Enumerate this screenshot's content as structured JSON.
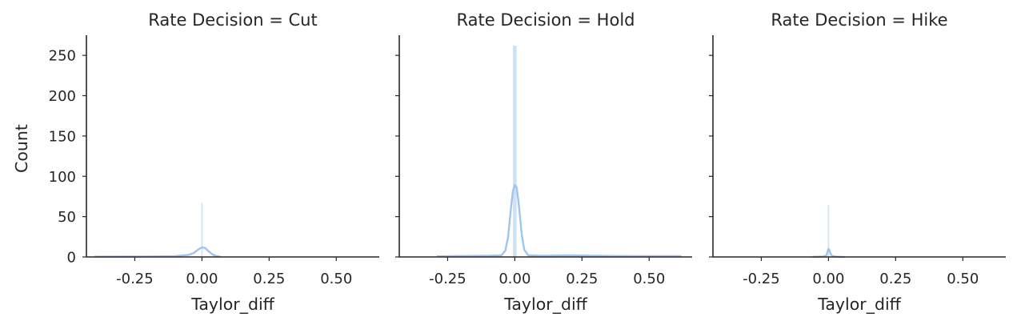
{
  "chart_data": {
    "type": "facet-histogram",
    "xlabel": "Taylor_diff",
    "ylabel": "Count",
    "ylim": [
      0,
      275
    ],
    "yticks": [
      0,
      50,
      100,
      150,
      200,
      250
    ],
    "ytick_labels": [
      "0",
      "50",
      "100",
      "150",
      "200",
      "250"
    ],
    "xlim": [
      -0.43,
      0.66
    ],
    "xticks": [
      -0.25,
      0.0,
      0.25,
      0.5
    ],
    "xtick_labels": [
      "-0.25",
      "0.00",
      "0.25",
      "0.50"
    ],
    "bar_color": "#cfe2f3",
    "kde_color": "#a1c4ec",
    "axis_color": "#262626",
    "facets": [
      {
        "title": "Rate Decision = Cut",
        "bars": [
          {
            "x0": -0.0015,
            "x1": 0.0015,
            "count": 67
          }
        ],
        "kde": [
          [
            -0.4,
            0.4
          ],
          [
            -0.3,
            0.5
          ],
          [
            -0.2,
            0.6
          ],
          [
            -0.1,
            1.0
          ],
          [
            -0.05,
            2.5
          ],
          [
            -0.03,
            5
          ],
          [
            -0.015,
            9
          ],
          [
            0.0,
            12
          ],
          [
            0.012,
            11
          ],
          [
            0.025,
            7
          ],
          [
            0.04,
            3
          ],
          [
            0.055,
            1
          ],
          [
            0.07,
            0.3
          ]
        ]
      },
      {
        "title": "Rate Decision = Hold",
        "bars": [
          {
            "x0": -0.007,
            "x1": 0.007,
            "count": 262
          }
        ],
        "kde": [
          [
            -0.29,
            0.8
          ],
          [
            -0.2,
            1.2
          ],
          [
            -0.1,
            1.5
          ],
          [
            -0.05,
            2
          ],
          [
            -0.035,
            8
          ],
          [
            -0.025,
            25
          ],
          [
            -0.015,
            58
          ],
          [
            -0.007,
            82
          ],
          [
            0.0,
            89
          ],
          [
            0.007,
            86
          ],
          [
            0.015,
            65
          ],
          [
            0.025,
            30
          ],
          [
            0.035,
            9
          ],
          [
            0.05,
            2
          ],
          [
            0.1,
            1.5
          ],
          [
            0.2,
            2
          ],
          [
            0.3,
            1.5
          ],
          [
            0.45,
            1
          ],
          [
            0.62,
            1
          ]
        ]
      },
      {
        "title": "Rate Decision = Hike",
        "bars": [
          {
            "x0": -0.0005,
            "x1": 0.0005,
            "count": 64
          }
        ],
        "kde": [
          [
            -0.06,
            0.2
          ],
          [
            -0.02,
            0.5
          ],
          [
            -0.008,
            2
          ],
          [
            -0.003,
            7
          ],
          [
            0.0,
            10
          ],
          [
            0.003,
            9
          ],
          [
            0.008,
            4
          ],
          [
            0.015,
            1
          ],
          [
            0.03,
            0.3
          ],
          [
            0.06,
            0.1
          ]
        ]
      }
    ]
  }
}
